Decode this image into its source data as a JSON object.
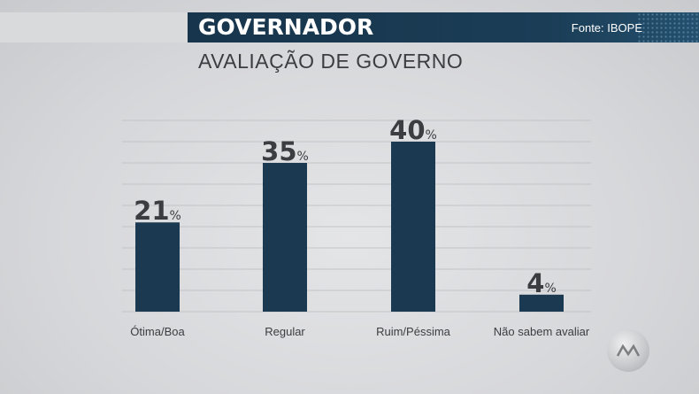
{
  "header": {
    "title": "GOVERNADOR",
    "source": "Fonte: IBOPE",
    "subtitle": "AVALIAÇÃO DE GOVERNO"
  },
  "colors": {
    "bar": "#1b3a52",
    "banner": "#17354c",
    "text_dark": "#3b3d40"
  },
  "chart_data": {
    "type": "bar",
    "title": "AVALIAÇÃO DE GOVERNO",
    "categories": [
      "Ótima/Boa",
      "Regular",
      "Ruim/Péssima",
      "Não sabem avaliar"
    ],
    "values": [
      21,
      35,
      40,
      4
    ],
    "value_suffix": "%",
    "ylim": [
      0,
      45
    ],
    "grid": true
  }
}
